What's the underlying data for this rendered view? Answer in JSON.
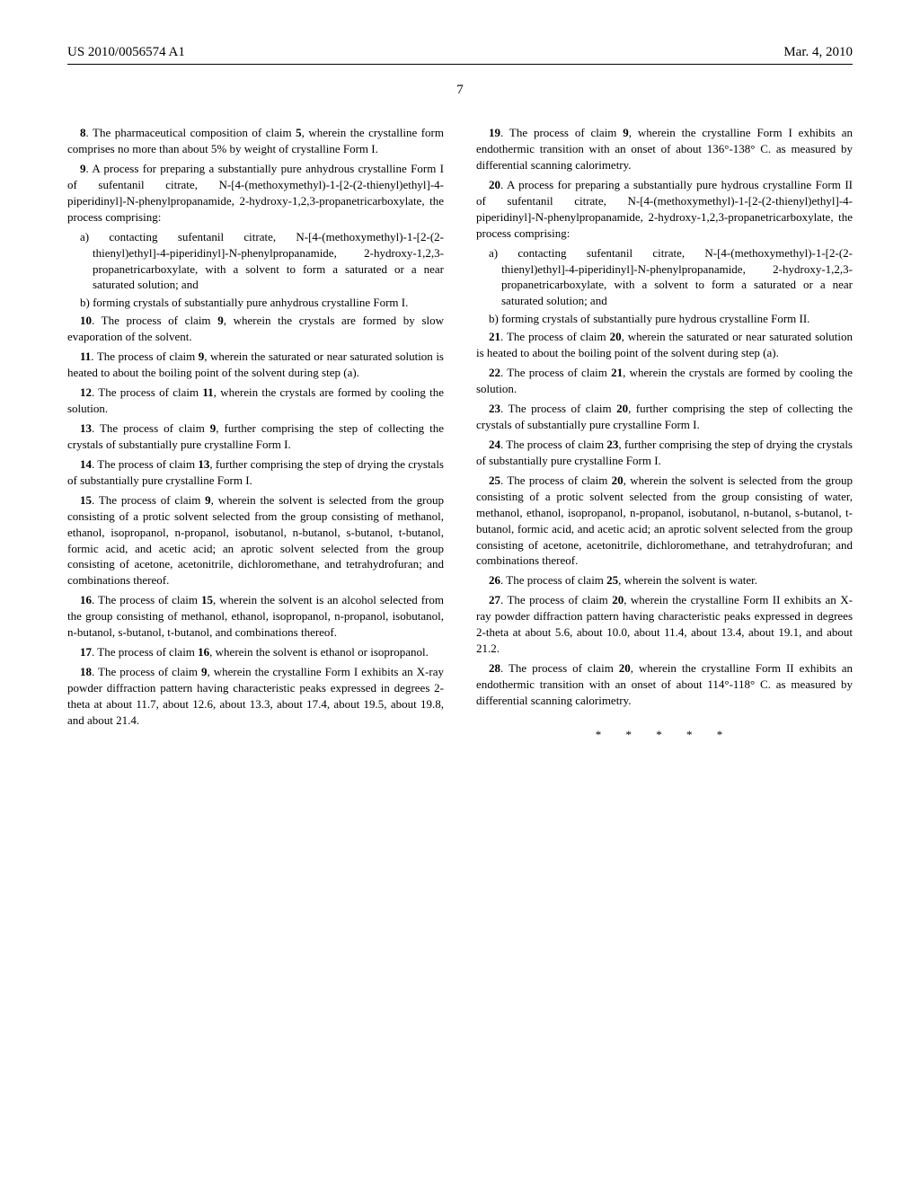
{
  "header": {
    "pub_no": "US 2010/0056574 A1",
    "date": "Mar. 4, 2010"
  },
  "page_number": "7",
  "col_left": {
    "claim8": {
      "num": "8",
      "text": ". The pharmaceutical composition of claim ",
      "ref": "5",
      "tail": ", wherein the crystalline form comprises no more than about 5% by weight of crystalline Form I."
    },
    "claim9": {
      "num": "9",
      "text": ". A process for preparing a substantially pure anhydrous crystalline Form I of sufentanil citrate, N-[4-(methoxymethyl)-1-[2-(2-thienyl)ethyl]-4-piperidinyl]-N-phenylpropanamide, 2-hydroxy-1,2,3-propanetricarboxylate, the process comprising:",
      "a": "a) contacting sufentanil citrate, N-[4-(methoxymethyl)-1-[2-(2-thienyl)ethyl]-4-piperidinyl]-N-phenylpropanamide, 2-hydroxy-1,2,3-propanetricarboxylate, with a solvent to form a saturated or a near saturated solution; and",
      "b": "b) forming crystals of substantially pure anhydrous crystalline Form I."
    },
    "claim10": {
      "num": "10",
      "text": ". The process of claim ",
      "ref": "9",
      "tail": ", wherein the crystals are formed by slow evaporation of the solvent."
    },
    "claim11": {
      "num": "11",
      "text": ". The process of claim ",
      "ref": "9",
      "tail": ", wherein the saturated or near saturated solution is heated to about the boiling point of the solvent during step (a)."
    },
    "claim12": {
      "num": "12",
      "text": ". The process of claim ",
      "ref": "11",
      "tail": ", wherein the crystals are formed by cooling the solution."
    },
    "claim13": {
      "num": "13",
      "text": ". The process of claim ",
      "ref": "9",
      "tail": ", further comprising the step of collecting the crystals of substantially pure crystalline Form I."
    },
    "claim14": {
      "num": "14",
      "text": ". The process of claim ",
      "ref": "13",
      "tail": ", further comprising the step of drying the crystals of substantially pure crystalline Form I."
    },
    "claim15": {
      "num": "15",
      "text": ". The process of claim ",
      "ref": "9",
      "tail": ", wherein the solvent is selected from the group consisting of a protic solvent selected from the group consisting of methanol, ethanol, isopropanol, n-propanol, isobutanol, n-butanol, s-butanol, t-butanol, formic acid, and acetic acid; an aprotic solvent selected from the group consisting of acetone, acetonitrile, dichloromethane, and tetrahydrofuran; and combinations thereof."
    },
    "claim16": {
      "num": "16",
      "text": ". The process of claim ",
      "ref": "15",
      "tail": ", wherein the solvent is an alcohol selected from the group consisting of methanol, ethanol, isopropanol, n-propanol, isobutanol, n-butanol, s-butanol, t-butanol, and combinations thereof."
    },
    "claim17": {
      "num": "17",
      "text": ". The process of claim ",
      "ref": "16",
      "tail": ", wherein the solvent is ethanol or isopropanol."
    },
    "claim18": {
      "num": "18",
      "text": ". The process of claim ",
      "ref": "9",
      "tail": ", wherein the crystalline Form I exhibits an X-ray powder diffraction pattern having characteristic peaks expressed in degrees 2-theta at about 11.7, about 12.6, about 13.3, about 17.4, about 19.5, about 19.8, and about 21.4."
    }
  },
  "col_right": {
    "claim19": {
      "num": "19",
      "text": ". The process of claim ",
      "ref": "9",
      "tail": ", wherein the crystalline Form I exhibits an endothermic transition with an onset of about 136°-138° C. as measured by differential scanning calorimetry."
    },
    "claim20": {
      "num": "20",
      "text": ". A process for preparing a substantially pure hydrous crystalline Form II of sufentanil citrate, N-[4-(methoxymethyl)-1-[2-(2-thienyl)ethyl]-4-piperidinyl]-N-phenylpropanamide, 2-hydroxy-1,2,3-propanetricarboxylate, the process comprising:",
      "a": "a) contacting sufentanil citrate, N-[4-(methoxymethyl)-1-[2-(2-thienyl)ethyl]-4-piperidinyl]-N-phenylpropanamide, 2-hydroxy-1,2,3-propanetricarboxylate, with a solvent to form a saturated or a near saturated solution; and",
      "b": "b) forming crystals of substantially pure hydrous crystalline Form II."
    },
    "claim21": {
      "num": "21",
      "text": ". The process of claim ",
      "ref": "20",
      "tail": ", wherein the saturated or near saturated solution is heated to about the boiling point of the solvent during step (a)."
    },
    "claim22": {
      "num": "22",
      "text": ". The process of claim ",
      "ref": "21",
      "tail": ", wherein the crystals are formed by cooling the solution."
    },
    "claim23": {
      "num": "23",
      "text": ". The process of claim ",
      "ref": "20",
      "tail": ", further comprising the step of collecting the crystals of substantially pure crystalline Form I."
    },
    "claim24": {
      "num": "24",
      "text": ". The process of claim ",
      "ref": "23",
      "tail": ", further comprising the step of drying the crystals of substantially pure crystalline Form I."
    },
    "claim25": {
      "num": "25",
      "text": ". The process of claim ",
      "ref": "20",
      "tail": ", wherein the solvent is selected from the group consisting of a protic solvent selected from the group consisting of water, methanol, ethanol, isopropanol, n-propanol, isobutanol, n-butanol, s-butanol, t-butanol, formic acid, and acetic acid; an aprotic solvent selected from the group consisting of acetone, acetonitrile, dichloromethane, and tetrahydrofuran; and combinations thereof."
    },
    "claim26": {
      "num": "26",
      "text": ". The process of claim ",
      "ref": "25",
      "tail": ", wherein the solvent is water."
    },
    "claim27": {
      "num": "27",
      "text": ". The process of claim ",
      "ref": "20",
      "tail": ", wherein the crystalline Form II exhibits an X-ray powder diffraction pattern having characteristic peaks expressed in degrees 2-theta at about 5.6, about 10.0, about 11.4, about 13.4, about 19.1, and about 21.2."
    },
    "claim28": {
      "num": "28",
      "text": ". The process of claim ",
      "ref": "20",
      "tail": ", wherein the crystalline Form II exhibits an endothermic transition with an onset of about 114°-118° C. as measured by differential scanning calorimetry."
    }
  },
  "end_mark": "* * * * *"
}
